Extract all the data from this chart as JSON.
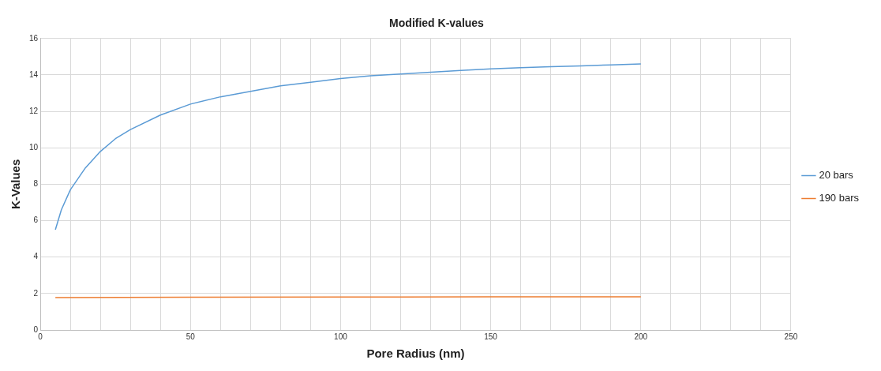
{
  "chart_data": {
    "type": "line",
    "title": "Modified K-values",
    "xlabel": "Pore Radius (nm)",
    "ylabel": "K-Values",
    "xlim": [
      0,
      250
    ],
    "xticks": [
      0,
      {
        "value": 10,
        "label": null
      },
      {
        "value": 20,
        "label": null
      },
      {
        "value": 30,
        "label": null
      },
      {
        "value": 40,
        "label": null
      },
      50,
      {
        "value": 60,
        "label": null
      },
      {
        "value": 70,
        "label": null
      },
      {
        "value": 80,
        "label": null
      },
      {
        "value": 90,
        "label": null
      },
      100,
      {
        "value": 110,
        "label": null
      },
      {
        "value": 120,
        "label": null
      },
      {
        "value": 130,
        "label": null
      },
      {
        "value": 140,
        "label": null
      },
      150,
      {
        "value": 160,
        "label": null
      },
      {
        "value": 170,
        "label": null
      },
      {
        "value": 180,
        "label": null
      },
      {
        "value": 190,
        "label": null
      },
      200,
      {
        "value": 210,
        "label": null
      },
      {
        "value": 220,
        "label": null
      },
      {
        "value": 230,
        "label": null
      },
      {
        "value": 240,
        "label": null
      },
      250
    ],
    "ylim": [
      0,
      16
    ],
    "yticks": [
      0,
      2,
      4,
      6,
      8,
      10,
      12,
      14,
      16
    ],
    "grid": true,
    "legend": "right",
    "marker": "none",
    "line_style": "solid",
    "series": [
      {
        "name": "20 bars",
        "color": "#5b9bd5",
        "x": [
          5,
          7,
          10,
          15,
          20,
          25,
          30,
          40,
          50,
          60,
          70,
          80,
          90,
          100,
          110,
          120,
          130,
          140,
          150,
          160,
          170,
          180,
          190,
          200
        ],
        "values": [
          5.5,
          6.6,
          7.7,
          8.9,
          9.8,
          10.5,
          11.0,
          11.8,
          12.4,
          12.8,
          13.1,
          13.4,
          13.6,
          13.8,
          13.95,
          14.05,
          14.15,
          14.25,
          14.33,
          14.4,
          14.45,
          14.5,
          14.55,
          14.6
        ]
      },
      {
        "name": "190 bars",
        "color": "#ed7d31",
        "x": [
          5,
          50,
          100,
          150,
          200
        ],
        "values": [
          1.78,
          1.8,
          1.81,
          1.82,
          1.82
        ]
      }
    ]
  }
}
